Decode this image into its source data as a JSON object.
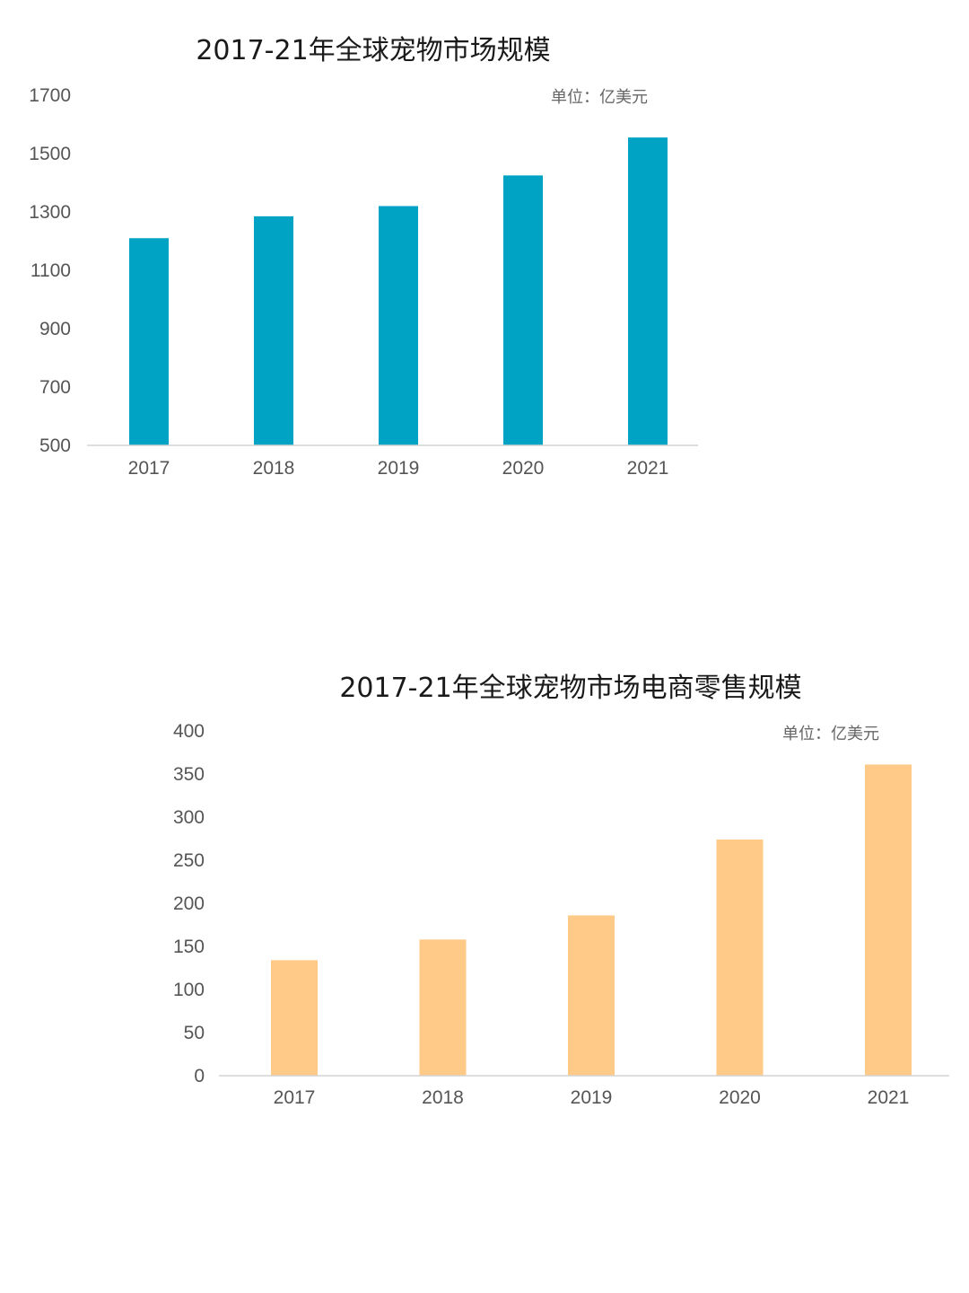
{
  "chart_data": [
    {
      "type": "bar",
      "title": "2017-21年全球宠物市场规模",
      "unit_note": "单位：亿美元",
      "categories": [
        "2017",
        "2018",
        "2019",
        "2020",
        "2021"
      ],
      "values": [
        1210,
        1285,
        1320,
        1425,
        1555
      ],
      "ylim": [
        500,
        1700
      ],
      "yticks": [
        500,
        700,
        900,
        1100,
        1300,
        1500,
        1700
      ],
      "ytick_labels": [
        "500",
        "700",
        "900",
        "1100",
        "1300",
        "1500",
        "1700"
      ],
      "grid": false,
      "color": "#00a3c4"
    },
    {
      "type": "bar",
      "title": "2017-21年全球宠物市场电商零售规模",
      "unit_note": "单位：亿美元",
      "categories": [
        "2017",
        "2018",
        "2019",
        "2020",
        "2021"
      ],
      "values": [
        134,
        158,
        186,
        274,
        361
      ],
      "ylim": [
        0,
        400
      ],
      "yticks": [
        0,
        50,
        100,
        150,
        200,
        250,
        300,
        350,
        400
      ],
      "ytick_labels": [
        "0",
        "50",
        "100",
        "150",
        "200",
        "250",
        "300",
        "350",
        "400"
      ],
      "grid": false,
      "color": "#ffc987"
    }
  ]
}
